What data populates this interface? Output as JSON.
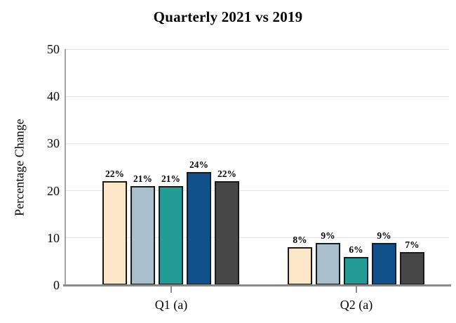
{
  "chart_data": {
    "type": "bar",
    "title": "Quarterly 2021 vs 2019",
    "ylabel": "Percentage Change",
    "xlabel": "",
    "categories": [
      "Q1 (a)",
      "Q2 (a)"
    ],
    "yticks": [
      0,
      10,
      20,
      30,
      40,
      50
    ],
    "ylim": [
      0,
      50
    ],
    "grid": "horizontal-light",
    "legend": "none",
    "series_colors": [
      "#FBE7C7",
      "#A9C0CC",
      "#239C96",
      "#12508B",
      "#474747"
    ],
    "groups": [
      {
        "category": "Q1 (a)",
        "values": [
          22,
          21,
          21,
          24,
          22
        ],
        "labels": [
          "22%",
          "21%",
          "21%",
          "24%",
          "22%"
        ]
      },
      {
        "category": "Q2 (a)",
        "values": [
          8,
          9,
          6,
          9,
          7
        ],
        "labels": [
          "8%",
          "9%",
          "6%",
          "9%",
          "7%"
        ]
      }
    ],
    "colors": {
      "bar_outline": "#1a1a1a",
      "axis": "#8a8a8a",
      "gridline": "#e8e8e8",
      "text": "#000000"
    }
  }
}
